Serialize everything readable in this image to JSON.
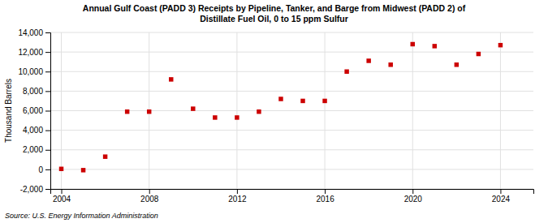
{
  "chart_data": {
    "type": "scatter",
    "title": "Annual Gulf Coast (PADD 3) Receipts by Pipeline, Tanker, and Barge from Midwest (PADD 2) of\nDistillate Fuel Oil, 0 to 15 ppm Sulfur",
    "ylabel": "Thousand Barrels",
    "annotations": [
      "Source: U.S. Energy Information Administration"
    ],
    "x": [
      2004,
      2005,
      2006,
      2007,
      2008,
      2009,
      2010,
      2011,
      2012,
      2013,
      2014,
      2015,
      2016,
      2017,
      2018,
      2019,
      2020,
      2021,
      2022,
      2023,
      2024
    ],
    "values": [
      50,
      -80,
      1300,
      5900,
      5900,
      9200,
      6200,
      5300,
      5300,
      5900,
      7200,
      7000,
      7000,
      10000,
      11100,
      10700,
      12800,
      12600,
      10700,
      11800,
      12700
    ],
    "color": "#cc0000",
    "marker": "square",
    "xlim": [
      2003.5,
      2025.5
    ],
    "xticks": [
      2004,
      2008,
      2012,
      2016,
      2020,
      2024
    ],
    "ylim": [
      -2000,
      14000
    ],
    "yticks": [
      {
        "value": -2000,
        "label": "-2,000"
      },
      0,
      {
        "value": 2000,
        "label": "2,000"
      },
      {
        "value": 4000,
        "label": "4,000"
      },
      {
        "value": 6000,
        "label": "6,000"
      },
      {
        "value": 8000,
        "label": "8,000"
      },
      {
        "value": 10000,
        "label": "10,000"
      },
      {
        "value": 12000,
        "label": "12,000"
      },
      {
        "value": 14000,
        "label": "14,000"
      }
    ],
    "grid": true
  }
}
